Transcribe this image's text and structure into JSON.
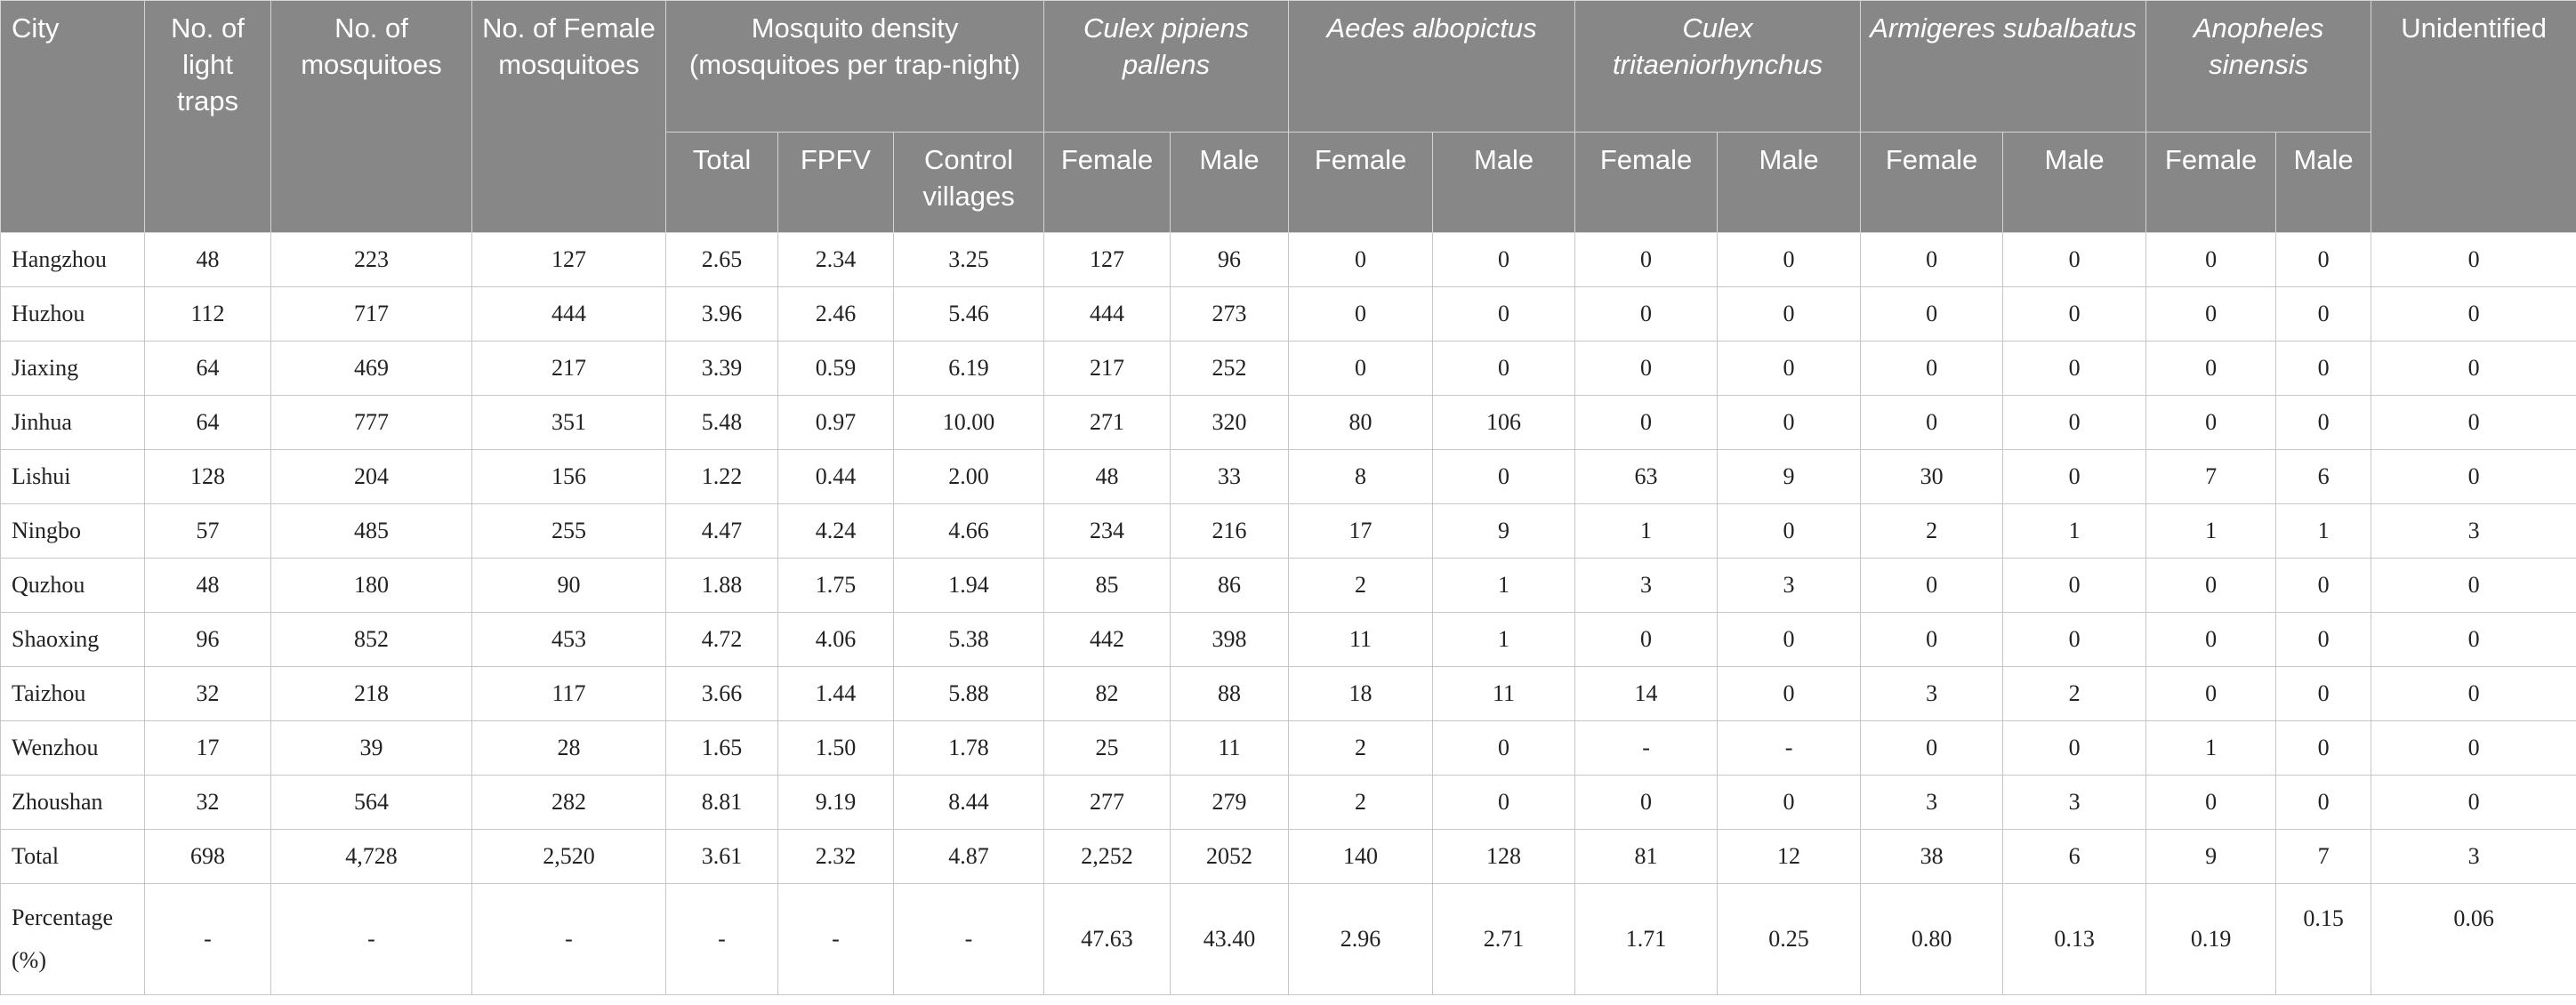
{
  "header": {
    "city": "City",
    "light_traps": "No. of light traps",
    "mosquitoes": "No. of mosquitoes",
    "female_mosquitoes": "No. of Female mosquitoes",
    "density": "Mosquito density (mosquitoes per trap-night)",
    "density_total": "Total",
    "density_fpfv": "FPFV",
    "density_control": "Control villages",
    "species": [
      "Culex pipiens pallens",
      "Aedes albopictus",
      "Culex tritaeniorhynchus",
      "Armigeres subalbatus",
      "Anopheles sinensis"
    ],
    "female": "Female",
    "male": "Male",
    "unidentified": "Unidentified"
  },
  "rows": [
    [
      "Hangzhou",
      "48",
      "223",
      "127",
      "2.65",
      "2.34",
      "3.25",
      "127",
      "96",
      "0",
      "0",
      "0",
      "0",
      "0",
      "0",
      "0",
      "0",
      "0"
    ],
    [
      "Huzhou",
      "112",
      "717",
      "444",
      "3.96",
      "2.46",
      "5.46",
      "444",
      "273",
      "0",
      "0",
      "0",
      "0",
      "0",
      "0",
      "0",
      "0",
      "0"
    ],
    [
      "Jiaxing",
      "64",
      "469",
      "217",
      "3.39",
      "0.59",
      "6.19",
      "217",
      "252",
      "0",
      "0",
      "0",
      "0",
      "0",
      "0",
      "0",
      "0",
      "0"
    ],
    [
      "Jinhua",
      "64",
      "777",
      "351",
      "5.48",
      "0.97",
      "10.00",
      "271",
      "320",
      "80",
      "106",
      "0",
      "0",
      "0",
      "0",
      "0",
      "0",
      "0"
    ],
    [
      "Lishui",
      "128",
      "204",
      "156",
      "1.22",
      "0.44",
      "2.00",
      "48",
      "33",
      "8",
      "0",
      "63",
      "9",
      "30",
      "0",
      "7",
      "6",
      "0"
    ],
    [
      "Ningbo",
      "57",
      "485",
      "255",
      "4.47",
      "4.24",
      "4.66",
      "234",
      "216",
      "17",
      "9",
      "1",
      "0",
      "2",
      "1",
      "1",
      "1",
      "3"
    ],
    [
      "Quzhou",
      "48",
      "180",
      "90",
      "1.88",
      "1.75",
      "1.94",
      "85",
      "86",
      "2",
      "1",
      "3",
      "3",
      "0",
      "0",
      "0",
      "0",
      "0"
    ],
    [
      "Shaoxing",
      "96",
      "852",
      "453",
      "4.72",
      "4.06",
      "5.38",
      "442",
      "398",
      "11",
      "1",
      "0",
      "0",
      "0",
      "0",
      "0",
      "0",
      "0"
    ],
    [
      "Taizhou",
      "32",
      "218",
      "117",
      "3.66",
      "1.44",
      "5.88",
      "82",
      "88",
      "18",
      "11",
      "14",
      "0",
      "3",
      "2",
      "0",
      "0",
      "0"
    ],
    [
      "Wenzhou",
      "17",
      "39",
      "28",
      "1.65",
      "1.50",
      "1.78",
      "25",
      "11",
      "2",
      "0",
      "-",
      "-",
      "0",
      "0",
      "1",
      "0",
      "0"
    ],
    [
      "Zhoushan",
      "32",
      "564",
      "282",
      "8.81",
      "9.19",
      "8.44",
      "277",
      "279",
      "2",
      "0",
      "0",
      "0",
      "3",
      "3",
      "0",
      "0",
      "0"
    ],
    [
      "Total",
      "698",
      "4,728",
      "2,520",
      "3.61",
      "2.32",
      "4.87",
      "2,252",
      "2052",
      "140",
      "128",
      "81",
      "12",
      "38",
      "6",
      "9",
      "7",
      "3"
    ]
  ],
  "percentage_row": [
    "Percentage (%)",
    "-",
    "-",
    "-",
    "-",
    "-",
    "-",
    "47.63",
    "43.40",
    "2.96",
    "2.71",
    "1.71",
    "0.25",
    "0.80",
    "0.13",
    "0.19",
    "0.15",
    "0.06"
  ]
}
